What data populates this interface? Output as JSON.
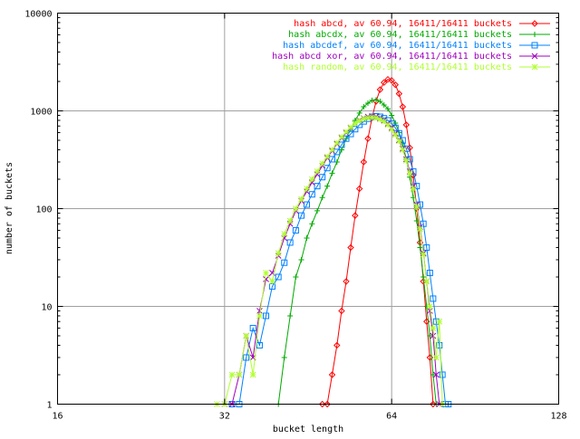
{
  "chart_data": {
    "type": "line",
    "xlabel": "bucket length",
    "ylabel": "number of buckets",
    "xscale": "log2",
    "yscale": "log10",
    "xlim": [
      16,
      128
    ],
    "ylim": [
      1,
      10000
    ],
    "xticks": [
      16,
      32,
      64,
      128
    ],
    "xtick_labels": [
      "16",
      "32",
      "64",
      "128"
    ],
    "yticks": [
      1,
      10,
      100,
      1000,
      10000
    ],
    "ytick_labels": [
      "1",
      "10",
      "100",
      "1000",
      "10000"
    ],
    "grid": true,
    "legend_position": "top-right",
    "series": [
      {
        "name": "hash abcd, av 60.94, 16411/16411 buckets",
        "color": "#ff0000",
        "marker": "diamond",
        "points": [
          [
            48,
            1
          ],
          [
            49,
            1
          ],
          [
            50,
            2
          ],
          [
            51,
            4
          ],
          [
            52,
            9
          ],
          [
            53,
            18
          ],
          [
            54,
            40
          ],
          [
            55,
            85
          ],
          [
            56,
            160
          ],
          [
            57,
            300
          ],
          [
            58,
            520
          ],
          [
            59,
            850
          ],
          [
            60,
            1250
          ],
          [
            61,
            1650
          ],
          [
            62,
            1950
          ],
          [
            63,
            2100
          ],
          [
            64,
            2050
          ],
          [
            65,
            1850
          ],
          [
            66,
            1500
          ],
          [
            67,
            1100
          ],
          [
            68,
            720
          ],
          [
            69,
            420
          ],
          [
            70,
            220
          ],
          [
            71,
            100
          ],
          [
            72,
            45
          ],
          [
            73,
            18
          ],
          [
            74,
            7
          ],
          [
            75,
            3
          ],
          [
            76,
            1
          ]
        ]
      },
      {
        "name": "hash abcdx, av 60.94, 16411/16411 buckets",
        "color": "#00aa00",
        "marker": "plus",
        "points": [
          [
            40,
            1
          ],
          [
            41,
            3
          ],
          [
            42,
            8
          ],
          [
            43,
            20
          ],
          [
            44,
            30
          ],
          [
            45,
            50
          ],
          [
            46,
            70
          ],
          [
            47,
            95
          ],
          [
            48,
            130
          ],
          [
            49,
            170
          ],
          [
            50,
            230
          ],
          [
            51,
            300
          ],
          [
            52,
            400
          ],
          [
            53,
            520
          ],
          [
            54,
            650
          ],
          [
            55,
            800
          ],
          [
            56,
            950
          ],
          [
            57,
            1100
          ],
          [
            58,
            1200
          ],
          [
            59,
            1280
          ],
          [
            60,
            1300
          ],
          [
            61,
            1250
          ],
          [
            62,
            1150
          ],
          [
            63,
            1050
          ],
          [
            64,
            900
          ],
          [
            65,
            750
          ],
          [
            66,
            600
          ],
          [
            67,
            460
          ],
          [
            68,
            320
          ],
          [
            69,
            210
          ],
          [
            70,
            130
          ],
          [
            71,
            75
          ],
          [
            72,
            40
          ],
          [
            73,
            20
          ],
          [
            74,
            10
          ],
          [
            75,
            5
          ],
          [
            76,
            2
          ],
          [
            77,
            1
          ]
        ]
      },
      {
        "name": "hash abcdef, av 60.94, 16411/16411 buckets",
        "color": "#0080ff",
        "marker": "square",
        "points": [
          [
            33,
            1
          ],
          [
            34,
            1
          ],
          [
            35,
            3
          ],
          [
            36,
            6
          ],
          [
            37,
            4
          ],
          [
            38,
            8
          ],
          [
            39,
            16
          ],
          [
            40,
            20
          ],
          [
            41,
            28
          ],
          [
            42,
            45
          ],
          [
            43,
            60
          ],
          [
            44,
            85
          ],
          [
            45,
            110
          ],
          [
            46,
            140
          ],
          [
            47,
            170
          ],
          [
            48,
            210
          ],
          [
            49,
            260
          ],
          [
            50,
            320
          ],
          [
            51,
            380
          ],
          [
            52,
            450
          ],
          [
            53,
            520
          ],
          [
            54,
            580
          ],
          [
            55,
            650
          ],
          [
            56,
            720
          ],
          [
            57,
            780
          ],
          [
            58,
            830
          ],
          [
            59,
            870
          ],
          [
            60,
            880
          ],
          [
            61,
            870
          ],
          [
            62,
            840
          ],
          [
            63,
            800
          ],
          [
            64,
            740
          ],
          [
            65,
            670
          ],
          [
            66,
            590
          ],
          [
            67,
            500
          ],
          [
            68,
            410
          ],
          [
            69,
            320
          ],
          [
            70,
            240
          ],
          [
            71,
            170
          ],
          [
            72,
            110
          ],
          [
            73,
            70
          ],
          [
            74,
            40
          ],
          [
            75,
            22
          ],
          [
            76,
            12
          ],
          [
            77,
            7
          ],
          [
            78,
            4
          ],
          [
            79,
            2
          ],
          [
            80,
            1
          ],
          [
            81,
            1
          ]
        ]
      },
      {
        "name": "hash abcd xor, av 60.94, 16411/16411 buckets",
        "color": "#a000c0",
        "marker": "cross",
        "points": [
          [
            32,
            1
          ],
          [
            33,
            1
          ],
          [
            34,
            2
          ],
          [
            35,
            5
          ],
          [
            36,
            3
          ],
          [
            37,
            9
          ],
          [
            38,
            19
          ],
          [
            39,
            22
          ],
          [
            40,
            33
          ],
          [
            41,
            50
          ],
          [
            42,
            70
          ],
          [
            43,
            95
          ],
          [
            44,
            120
          ],
          [
            45,
            150
          ],
          [
            46,
            185
          ],
          [
            47,
            225
          ],
          [
            48,
            275
          ],
          [
            49,
            330
          ],
          [
            50,
            390
          ],
          [
            51,
            460
          ],
          [
            52,
            530
          ],
          [
            53,
            600
          ],
          [
            54,
            670
          ],
          [
            55,
            740
          ],
          [
            56,
            800
          ],
          [
            57,
            840
          ],
          [
            58,
            870
          ],
          [
            59,
            880
          ],
          [
            60,
            870
          ],
          [
            61,
            840
          ],
          [
            62,
            800
          ],
          [
            63,
            740
          ],
          [
            64,
            670
          ],
          [
            65,
            590
          ],
          [
            66,
            500
          ],
          [
            67,
            410
          ],
          [
            68,
            320
          ],
          [
            69,
            240
          ],
          [
            70,
            170
          ],
          [
            71,
            110
          ],
          [
            72,
            65
          ],
          [
            73,
            35
          ],
          [
            74,
            18
          ],
          [
            75,
            9
          ],
          [
            76,
            5
          ],
          [
            77,
            2
          ],
          [
            78,
            1
          ]
        ]
      },
      {
        "name": "hash random, av 60.94, 16411/16411 buckets",
        "color": "#b0ff30",
        "marker": "star",
        "points": [
          [
            31,
            1
          ],
          [
            32,
            1
          ],
          [
            33,
            2
          ],
          [
            34,
            2
          ],
          [
            35,
            5
          ],
          [
            36,
            2
          ],
          [
            37,
            8
          ],
          [
            38,
            22
          ],
          [
            39,
            18
          ],
          [
            40,
            35
          ],
          [
            41,
            55
          ],
          [
            42,
            75
          ],
          [
            43,
            100
          ],
          [
            44,
            125
          ],
          [
            45,
            160
          ],
          [
            46,
            200
          ],
          [
            47,
            240
          ],
          [
            48,
            290
          ],
          [
            49,
            340
          ],
          [
            50,
            400
          ],
          [
            51,
            470
          ],
          [
            52,
            540
          ],
          [
            53,
            610
          ],
          [
            54,
            680
          ],
          [
            55,
            740
          ],
          [
            56,
            790
          ],
          [
            57,
            830
          ],
          [
            58,
            850
          ],
          [
            59,
            860
          ],
          [
            60,
            850
          ],
          [
            61,
            820
          ],
          [
            62,
            780
          ],
          [
            63,
            720
          ],
          [
            64,
            650
          ],
          [
            65,
            570
          ],
          [
            66,
            490
          ],
          [
            67,
            400
          ],
          [
            68,
            310
          ],
          [
            69,
            230
          ],
          [
            70,
            160
          ],
          [
            71,
            105
          ],
          [
            72,
            62
          ],
          [
            73,
            34
          ],
          [
            74,
            18
          ],
          [
            75,
            10
          ],
          [
            76,
            6
          ],
          [
            77,
            3
          ],
          [
            78,
            7
          ],
          [
            79,
            1
          ]
        ]
      }
    ]
  }
}
